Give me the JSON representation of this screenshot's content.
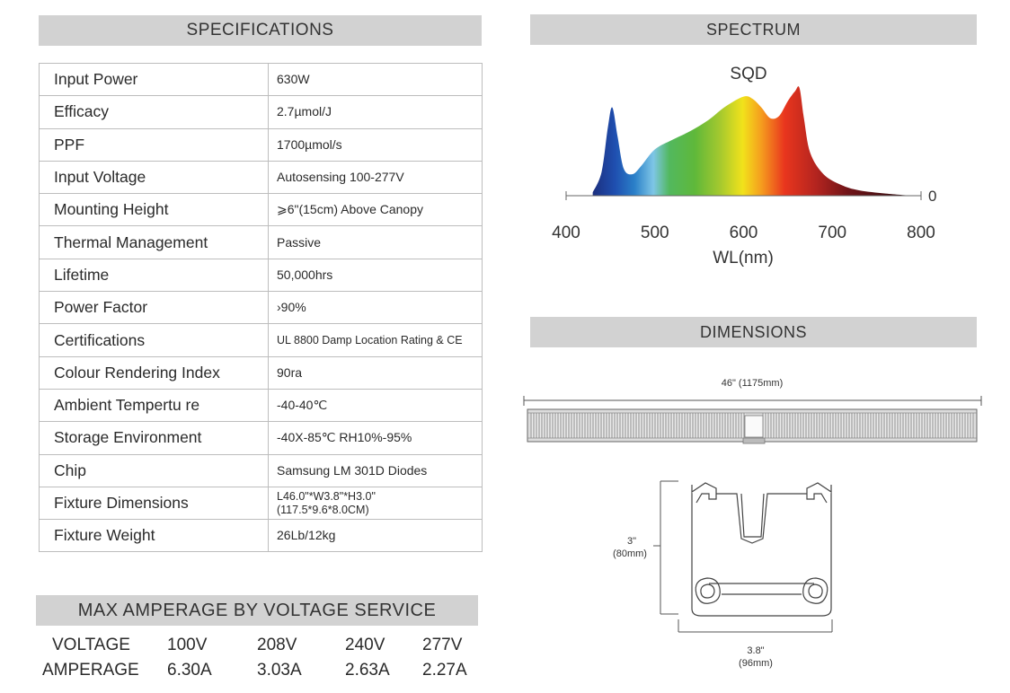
{
  "specifications": {
    "header": "SPECIFICATIONS",
    "rows": [
      {
        "label": "Input Power",
        "value": "630W"
      },
      {
        "label": "Efficacy",
        "value": "2.7µmol/J"
      },
      {
        "label": "PPF",
        "value": "1700µmol/s"
      },
      {
        "label": "Input Voltage",
        "value": "Autosensing 100-277V"
      },
      {
        "label": "Mounting Height",
        "value": "⩾6\"(15cm) Above Canopy"
      },
      {
        "label": "Thermal Management",
        "value": "Passive"
      },
      {
        "label": "Lifetime",
        "value": "50,000hrs"
      },
      {
        "label": "Power Factor",
        "value": "›90%"
      },
      {
        "label": "Certifications",
        "value": "UL 8800 Damp Location Rating & CE"
      },
      {
        "label": "Colour Rendering Index",
        "value": "90ra"
      },
      {
        "label": "Ambient Tempertu re",
        "value": "-40-40℃"
      },
      {
        "label": "Storage Environment",
        "value": "-40X-85℃  RH10%-95%"
      },
      {
        "label": "Chip",
        "value": "Samsung LM 301D Diodes"
      },
      {
        "label": "Fixture Dimensions",
        "value": "L46.0\"*W3.8\"*H3.0\"",
        "value2": "(117.5*9.6*8.0CM)"
      },
      {
        "label": "Fixture Weight",
        "value": "26Lb/12kg"
      }
    ]
  },
  "spectrum": {
    "header": "SPECTRUM",
    "chart_data": {
      "type": "area",
      "title": "SQD",
      "xlabel": "WL(nm)",
      "ylabel": "",
      "xlim": [
        400,
        800
      ],
      "x_ticks": [
        "400",
        "500",
        "600",
        "700",
        "800"
      ],
      "y_ticks": [
        "0"
      ],
      "x": [
        430,
        440,
        447,
        452,
        458,
        465,
        475,
        485,
        500,
        520,
        540,
        560,
        580,
        600,
        610,
        620,
        630,
        640,
        650,
        658,
        663,
        668,
        675,
        690,
        710,
        730,
        760,
        790
      ],
      "y": [
        0.03,
        0.22,
        0.63,
        0.82,
        0.55,
        0.25,
        0.2,
        0.28,
        0.43,
        0.52,
        0.6,
        0.7,
        0.83,
        0.92,
        0.9,
        0.82,
        0.72,
        0.74,
        0.88,
        0.97,
        1.0,
        0.72,
        0.4,
        0.2,
        0.1,
        0.05,
        0.02,
        0.0
      ]
    }
  },
  "dimensions": {
    "header": "DIMENSIONS",
    "length_label": "46\" (1175mm)",
    "height_label_1": "3\"",
    "height_label_2": "(80mm)",
    "width_label_1": "3.8\"",
    "width_label_2": "(96mm)"
  },
  "amperage": {
    "header": "MAX AMPERAGE BY VOLTAGE SERVICE",
    "voltage_label": "VOLTAGE",
    "amperage_label": "AMPERAGE",
    "voltages": [
      "100V",
      "208V",
      "240V",
      "277V"
    ],
    "amperages": [
      "6.30A",
      "3.03A",
      "2.63A",
      "2.27A"
    ]
  }
}
